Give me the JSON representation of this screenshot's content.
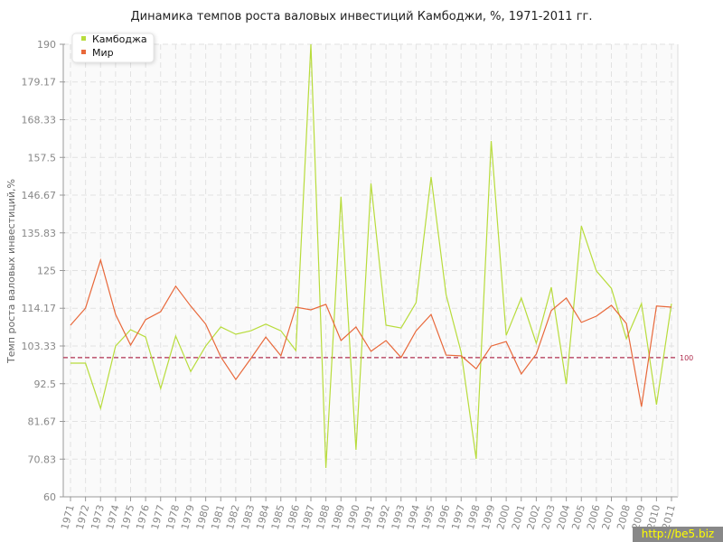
{
  "chart_data": {
    "type": "line",
    "title": "Динамика темпов роста валовых инвестиций Камбоджи, %, 1971-2011 гг.",
    "xlabel": "",
    "ylabel": "Темп роста валовых инвестиций,%",
    "ylim": [
      60,
      190
    ],
    "yticks": [
      "60",
      "70.83",
      "81.67",
      "92.5",
      "103.33",
      "114.17",
      "125",
      "135.83",
      "146.67",
      "157.5",
      "168.33",
      "179.17",
      "190"
    ],
    "grid": true,
    "legend_position": "top-left",
    "x": [
      "1971",
      "1972",
      "1973",
      "1974",
      "1975",
      "1976",
      "1977",
      "1978",
      "1979",
      "1980",
      "1981",
      "1982",
      "1983",
      "1984",
      "1985",
      "1986",
      "1987",
      "1988",
      "1989",
      "1990",
      "1991",
      "1992",
      "1993",
      "1994",
      "1995",
      "1996",
      "1997",
      "1998",
      "1999",
      "2000",
      "2001",
      "2002",
      "2003",
      "2004",
      "2005",
      "2006",
      "2007",
      "2008",
      "2009",
      "2010",
      "2011"
    ],
    "series": [
      {
        "name": "Камбоджа",
        "color": "#b8dc3c",
        "values": [
          98.4,
          98.4,
          85.4,
          103.3,
          108,
          105.9,
          91.1,
          106.2,
          96,
          103.3,
          108.8,
          106.7,
          107.7,
          109.6,
          107.7,
          102,
          190,
          68.3,
          146.2,
          73.5,
          150,
          109.3,
          108.5,
          115.8,
          151.9,
          118.1,
          101.5,
          70.9,
          162.2,
          106.4,
          117.1,
          104.1,
          120.2,
          92.4,
          137.8,
          124.9,
          119.9,
          105.4,
          115.5,
          86.5,
          115.5
        ]
      },
      {
        "name": "Мир",
        "color": "#e8683a",
        "values": [
          109.3,
          114.2,
          128,
          112.4,
          103.6,
          110.9,
          113.2,
          120.5,
          114.8,
          109.6,
          100.2,
          93.7,
          99.7,
          105.9,
          100.5,
          114.5,
          113.7,
          115.3,
          104.9,
          108.8,
          101.8,
          104.9,
          100,
          107.7,
          112.4,
          100.7,
          100.5,
          96.8,
          103.3,
          104.6,
          95.3,
          101,
          113.5,
          117.1,
          110.1,
          111.9,
          115,
          109.8,
          85.9,
          114.8,
          114.5
        ]
      }
    ],
    "reference_line": {
      "value": 100,
      "label": "100",
      "color": "#b03050"
    }
  },
  "watermark": "http://be5.biz"
}
